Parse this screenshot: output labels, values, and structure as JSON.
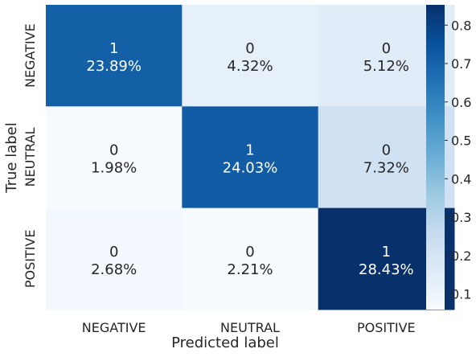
{
  "chart_data": {
    "type": "heatmap",
    "title": "",
    "xlabel": "Predicted label",
    "ylabel": "True label",
    "x_categories": [
      "NEGATIVE",
      "NEUTRAL",
      "POSITIVE"
    ],
    "y_categories": [
      "NEGATIVE",
      "NEUTRAL",
      "POSITIVE"
    ],
    "cells": [
      [
        {
          "count": "1",
          "percent": "23.89%",
          "value": 0.7085
        },
        {
          "count": "0",
          "percent": "4.32%",
          "value": 0.1281
        },
        {
          "count": "0",
          "percent": "5.12%",
          "value": 0.1518
        }
      ],
      [
        {
          "count": "0",
          "percent": "1.98%",
          "value": 0.0593
        },
        {
          "count": "1",
          "percent": "24.03%",
          "value": 0.7198
        },
        {
          "count": "0",
          "percent": "7.32%",
          "value": 0.2193
        }
      ],
      [
        {
          "count": "0",
          "percent": "2.68%",
          "value": 0.0806
        },
        {
          "count": "0",
          "percent": "2.21%",
          "value": 0.0665
        },
        {
          "count": "1",
          "percent": "28.43%",
          "value": 0.8529
        }
      ]
    ],
    "colormap": "Blues",
    "colorbar": {
      "range": [
        0.0593,
        0.8529
      ],
      "ticks": [
        "0.1",
        "0.2",
        "0.3",
        "0.4",
        "0.5",
        "0.6",
        "0.7",
        "0.8"
      ]
    }
  }
}
